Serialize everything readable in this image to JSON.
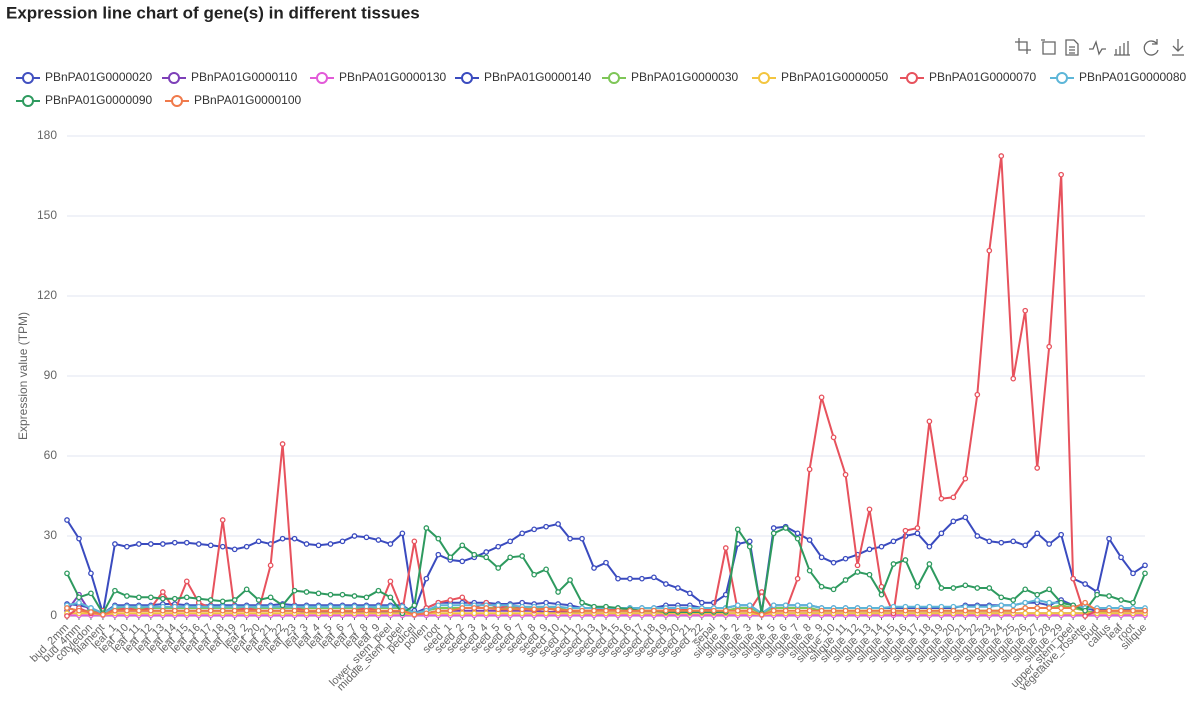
{
  "chart_data": {
    "type": "line",
    "title": "Expression line chart of gene(s) in different tissues",
    "y_label": "Expression value (TPM)",
    "ylim": [
      0,
      180
    ],
    "yticks": [
      0,
      30,
      60,
      90,
      120,
      150,
      180
    ],
    "grid": true,
    "legend": "top",
    "categories": [
      "bud_2mm",
      "bud_4mm",
      "cotyledon",
      "filament",
      "leaf_1",
      "leaf_10",
      "leaf_11",
      "leaf_12",
      "leaf_13",
      "leaf_14",
      "leaf_15",
      "leaf_16",
      "leaf_17",
      "leaf_18",
      "leaf_19",
      "leaf_2",
      "leaf_20",
      "leaf_21",
      "leaf_22",
      "leaf_23",
      "leaf_3",
      "leaf_4",
      "leaf_5",
      "leaf_6",
      "leaf_7",
      "leaf_8",
      "leaf_9",
      "lower_stem_peel",
      "middle_stem_peel",
      "pedicel",
      "pollen",
      "root",
      "seed_1",
      "seed_2",
      "seed_3",
      "seed_4",
      "seed_5",
      "seed_6",
      "seed_7",
      "seed_8",
      "seed_9",
      "seed_10",
      "seed_11",
      "seed_12",
      "seed_13",
      "seed_14",
      "seed_15",
      "seed_16",
      "seed_17",
      "seed_18",
      "seed_19",
      "seed_20",
      "seed_21",
      "seed_22",
      "sepal",
      "silique_1",
      "silique_2",
      "silique_3",
      "silique_4",
      "silique_5",
      "silique_6",
      "silique_7",
      "silique_8",
      "silique_9",
      "silique_10",
      "silique_11",
      "silique_12",
      "silique_13",
      "silique_14",
      "silique_15",
      "silique_16",
      "silique_17",
      "silique_18",
      "silique_19",
      "silique_20",
      "silique_21",
      "silique_22",
      "silique_23",
      "silique_24",
      "silique_25",
      "silique_26",
      "silique_27",
      "silique_28",
      "silique_29",
      "upper_stem_peel",
      "vegetative_rosette",
      "bud",
      "callus",
      "leaf",
      "root",
      "silique"
    ],
    "series": [
      {
        "name": "PBnPA01G0000020",
        "color": "#4150c0",
        "values": [
          4.5,
          4,
          3,
          1,
          4,
          4,
          4,
          4,
          4.5,
          4.5,
          4,
          4,
          4,
          4,
          4,
          4,
          4,
          4,
          4.5,
          4,
          4,
          4,
          4,
          4,
          4,
          4,
          4,
          4,
          4,
          1,
          3,
          5,
          5,
          5,
          5,
          5,
          4.5,
          4.5,
          5,
          4.5,
          5,
          4.5,
          4,
          3,
          3,
          3,
          3,
          3,
          3,
          3,
          4,
          4,
          4,
          3,
          3,
          3,
          4,
          4,
          1,
          4,
          4,
          4,
          4,
          3,
          3,
          3,
          3,
          3,
          3,
          3,
          3,
          3,
          3,
          3,
          3,
          4,
          4,
          4,
          4,
          4,
          5,
          5,
          4,
          6,
          4,
          3,
          2,
          3,
          3,
          2,
          2
        ]
      },
      {
        "name": "PBnPA01G0000110",
        "color": "#7d3fb8",
        "values": [
          2,
          8,
          1,
          0.5,
          2,
          2,
          2,
          2,
          2,
          2,
          2,
          2,
          2,
          2,
          2,
          2,
          2,
          2,
          2,
          2,
          1.5,
          1.5,
          1.5,
          1.5,
          1.5,
          1.5,
          1.5,
          1.5,
          1.5,
          0.5,
          1,
          2,
          2,
          2,
          2,
          2,
          2,
          2,
          2,
          2,
          1.5,
          1.5,
          1.5,
          1,
          1,
          1,
          1,
          1,
          1,
          1,
          1,
          1,
          1,
          1,
          1,
          1,
          1,
          1,
          0.5,
          1,
          1,
          1,
          1,
          1,
          1,
          1,
          1,
          1,
          1,
          1,
          1,
          1,
          1,
          1,
          1,
          1,
          1,
          1,
          1,
          1,
          1,
          1,
          1,
          1,
          1,
          1,
          2,
          1,
          1,
          1,
          1
        ]
      },
      {
        "name": "PBnPA01G0000130",
        "color": "#e25ad8",
        "values": [
          0.3,
          0.3,
          0.3,
          0.3,
          0.3,
          0.3,
          0.3,
          0.3,
          0.3,
          0.3,
          0.3,
          0.3,
          0.3,
          0.3,
          0.3,
          0.3,
          0.3,
          0.3,
          0.3,
          0.3,
          0.3,
          0.3,
          0.3,
          0.3,
          0.3,
          0.3,
          0.3,
          0.3,
          0.3,
          0.3,
          0.3,
          0.3,
          0.3,
          0.3,
          0.3,
          0.3,
          0.3,
          0.3,
          0.3,
          0.3,
          0.3,
          0.3,
          0.3,
          0.3,
          0.3,
          0.3,
          0.3,
          0.3,
          0.3,
          0.3,
          0.3,
          0.3,
          0.3,
          0.3,
          0.3,
          0.3,
          0.3,
          0.3,
          0.3,
          0.3,
          0.3,
          0.3,
          0.3,
          0.3,
          0.3,
          0.3,
          0.3,
          0.3,
          0.3,
          0.3,
          0.3,
          0.3,
          0.3,
          0.3,
          0.3,
          0.3,
          0.3,
          0.3,
          0.3,
          0.3,
          0.3,
          0.3,
          0.3,
          0.3,
          0.3,
          0.3,
          0.3,
          0.3,
          0.3,
          0.3,
          0.3
        ]
      },
      {
        "name": "PBnPA01G0000140",
        "color": "#3a4bbf",
        "values": [
          36,
          29,
          16,
          1,
          27,
          26,
          27,
          27,
          27,
          27.5,
          27.5,
          27,
          26.5,
          26,
          25,
          26,
          28,
          27,
          29,
          29,
          27,
          26.5,
          27,
          28,
          30,
          29.5,
          28.5,
          27,
          31,
          2,
          14,
          23,
          21,
          20.5,
          22,
          24,
          26,
          28,
          31,
          32.5,
          33.5,
          34.5,
          29,
          29,
          18,
          20,
          14,
          14,
          14,
          14.5,
          12,
          10.5,
          8.5,
          5,
          5,
          8,
          27,
          28,
          1,
          33,
          33.5,
          31,
          28.5,
          22,
          20,
          21.5,
          23,
          25,
          26,
          28,
          30,
          31,
          26,
          31,
          35.5,
          37,
          30,
          28,
          27.5,
          28,
          26.5,
          31,
          27,
          30.5,
          14,
          12,
          9,
          29,
          22,
          16,
          19
        ]
      },
      {
        "name": "PBnPA01G0000030",
        "color": "#7ec657",
        "values": [
          3,
          2,
          2,
          1,
          3,
          3,
          3,
          3,
          3,
          3,
          3,
          3,
          3,
          3,
          3,
          3,
          3,
          3,
          3,
          3,
          3,
          3,
          3,
          3,
          3,
          3,
          3,
          3,
          3,
          1,
          2,
          3,
          3,
          3,
          3,
          3,
          3,
          3,
          3,
          3,
          3,
          3,
          2,
          2,
          2,
          2,
          2,
          2,
          2,
          2,
          2,
          2,
          2,
          2,
          2,
          2,
          3,
          3,
          1,
          3,
          3,
          3,
          3,
          2,
          2,
          2,
          2,
          2,
          2,
          2,
          2,
          2,
          2,
          2,
          2,
          2,
          2,
          2,
          2,
          2,
          3,
          3,
          3,
          4,
          3,
          2,
          1,
          2,
          2,
          2,
          2
        ]
      },
      {
        "name": "PBnPA01G0000050",
        "color": "#f3c53f",
        "values": [
          1,
          1,
          1,
          0.5,
          1,
          1,
          1,
          1,
          1,
          1,
          1,
          1,
          1,
          1,
          1,
          1,
          1,
          1,
          1,
          1,
          1,
          1,
          1,
          1,
          1,
          1,
          1,
          1,
          1,
          0.5,
          1,
          1,
          1,
          1,
          1,
          1,
          1,
          1,
          1,
          1,
          1,
          1,
          1,
          1,
          1,
          1,
          1,
          1,
          1,
          1,
          1,
          1,
          1,
          1,
          1,
          1,
          1,
          1,
          0.5,
          1,
          1,
          1,
          1,
          1,
          1,
          1,
          1,
          1,
          1,
          1,
          1,
          1,
          1,
          1,
          1,
          1,
          1,
          1,
          1,
          1,
          1,
          1,
          1,
          1,
          1,
          1,
          1,
          1,
          1,
          1,
          1
        ]
      },
      {
        "name": "PBnPA01G0000070",
        "color": "#e7525d",
        "values": [
          0,
          3,
          1,
          2,
          2,
          3,
          2,
          3,
          9,
          2,
          13,
          5,
          3,
          36,
          2,
          3,
          2,
          19,
          64.5,
          3,
          2,
          2,
          2,
          2,
          2,
          3,
          2,
          13,
          2,
          28,
          3,
          5,
          6,
          7,
          3,
          5,
          3,
          4,
          3,
          2,
          3,
          2,
          2,
          2,
          2,
          3,
          2,
          2,
          2,
          2,
          2,
          3,
          2,
          2,
          3,
          25.5,
          2,
          2,
          9,
          2,
          2,
          14,
          55,
          82,
          67,
          53,
          19,
          40,
          11,
          1,
          32,
          33,
          73,
          44,
          44.5,
          51.5,
          83,
          137,
          172.5,
          89,
          114.5,
          55.5,
          101,
          165.5,
          14,
          0,
          2,
          2,
          2,
          2,
          2
        ]
      },
      {
        "name": "PBnPA01G0000080",
        "color": "#5db6d8",
        "values": [
          4,
          5,
          3,
          1,
          3.5,
          3.5,
          3.5,
          3.5,
          3.5,
          3.5,
          3.5,
          3.5,
          3.5,
          3.5,
          3.5,
          3.5,
          3.5,
          3.5,
          3.5,
          3.5,
          3.5,
          3.5,
          3.5,
          3.5,
          3.5,
          3.5,
          3.5,
          3.5,
          3.5,
          1,
          2,
          4,
          4,
          4,
          4,
          4,
          4,
          4,
          3.5,
          3.5,
          3.5,
          3.5,
          3,
          3,
          3,
          3,
          3,
          3,
          3,
          3,
          3,
          3,
          3,
          3,
          3,
          3,
          4,
          4,
          1,
          4,
          4,
          4,
          4,
          3,
          3,
          3,
          3,
          3,
          3,
          3.5,
          3.5,
          3.5,
          3.5,
          3.5,
          3.5,
          3.5,
          3.5,
          3.5,
          4,
          4,
          5,
          6,
          5,
          5,
          4,
          3,
          3,
          3,
          3,
          3,
          3
        ]
      },
      {
        "name": "PBnPA01G0000090",
        "color": "#2e9a5f",
        "values": [
          16,
          7,
          8.5,
          1,
          9.5,
          7.5,
          7,
          7,
          6.5,
          6.5,
          7,
          6.5,
          6,
          5.5,
          6,
          10,
          6,
          7,
          4,
          9.5,
          9,
          8.5,
          8,
          8,
          7.5,
          7,
          9.5,
          7,
          1,
          4,
          33,
          29,
          22,
          26.5,
          23,
          22,
          18,
          22,
          22.5,
          15.5,
          17.5,
          9,
          13.5,
          5,
          3.5,
          3.5,
          3,
          2.5,
          2,
          2,
          1.5,
          1.5,
          1.5,
          1.5,
          1.5,
          1.5,
          32.5,
          26,
          1,
          31,
          33,
          29,
          17,
          11,
          10,
          13.5,
          16.5,
          15.5,
          8,
          19.5,
          21,
          11,
          19.5,
          10.5,
          10.5,
          11.5,
          10.5,
          10.5,
          7,
          6,
          10,
          8,
          10,
          5,
          4,
          2,
          8,
          7.5,
          6,
          5,
          16
        ]
      },
      {
        "name": "PBnPA01G0000100",
        "color": "#f07a4b",
        "values": [
          3,
          2,
          1.5,
          0.5,
          2,
          2,
          2,
          2,
          2,
          2,
          2,
          2,
          2,
          2,
          2,
          2,
          2,
          2,
          2,
          2,
          2,
          2,
          2,
          2,
          2,
          2,
          2,
          2,
          2,
          0.5,
          1,
          2,
          2,
          3,
          3,
          3,
          2.5,
          2.5,
          2.5,
          2.5,
          2.5,
          2.5,
          2,
          2,
          2,
          2,
          2,
          2,
          2,
          2,
          2,
          2,
          2,
          2,
          2,
          2,
          2,
          2,
          0.5,
          2,
          2,
          2,
          2,
          2,
          2,
          2,
          2,
          2,
          2,
          2,
          2,
          2,
          2,
          2,
          2,
          2,
          2,
          2,
          2,
          2,
          3,
          3,
          3,
          3,
          3,
          5,
          2,
          2,
          2,
          2,
          2
        ]
      }
    ]
  }
}
